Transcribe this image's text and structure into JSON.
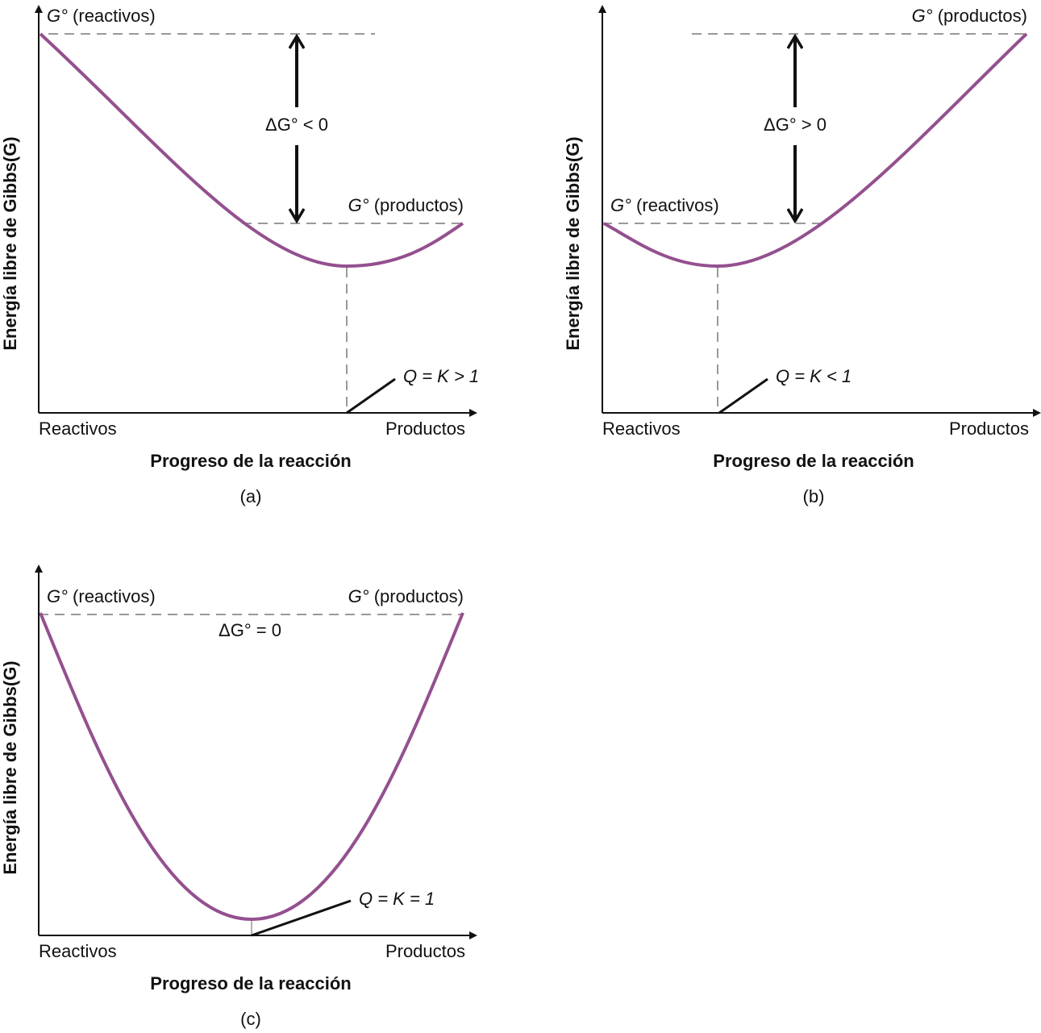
{
  "panels": [
    {
      "y_axis_label": "Energía libre de Gibbs(G)",
      "x_start": "Reactivos",
      "x_end": "Productos",
      "x_axis_label": "Progreso de la reacción",
      "caption": "(a)",
      "reactants_label": {
        "symbol": "G°",
        "text": "(reactivos)"
      },
      "products_label": {
        "symbol": "G°",
        "text": "(productos)"
      },
      "delta_label": "ΔG° < 0",
      "equilibrium_label": "Q = K > 1"
    },
    {
      "y_axis_label": "Energía libre de Gibbs(G)",
      "x_start": "Reactivos",
      "x_end": "Productos",
      "x_axis_label": "Progreso de la reacción",
      "caption": "(b)",
      "reactants_label": {
        "symbol": "G°",
        "text": "(reactivos)"
      },
      "products_label": {
        "symbol": "G°",
        "text": "(productos)"
      },
      "delta_label": "ΔG° > 0",
      "equilibrium_label": "Q = K < 1"
    },
    {
      "y_axis_label": "Energía libre de Gibbs(G)",
      "x_start": "Reactivos",
      "x_end": "Productos",
      "x_axis_label": "Progreso de la reacción",
      "caption": "(c)",
      "reactants_label": {
        "symbol": "G°",
        "text": "(reactivos)"
      },
      "products_label": {
        "symbol": "G°",
        "text": "(productos)"
      },
      "delta_label": "ΔG° = 0",
      "equilibrium_label": "Q = K = 1"
    }
  ]
}
